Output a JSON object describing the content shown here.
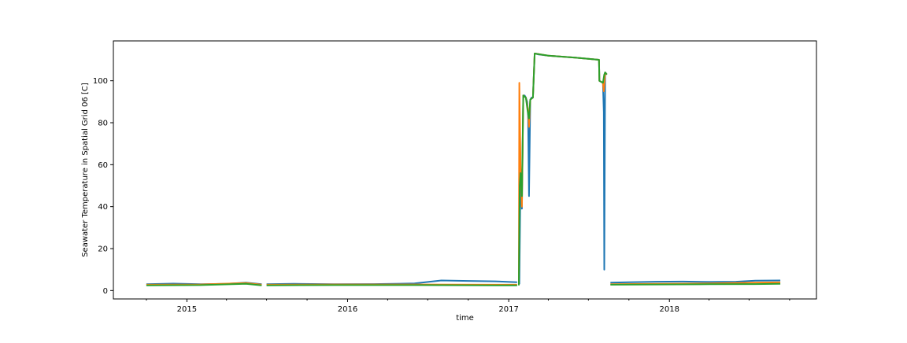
{
  "chart_data": {
    "type": "line",
    "title": "",
    "xlabel": "time",
    "ylabel": "Seawater Temperature in Spatial Grid 06 [C]",
    "xlim": [
      "2014-07-18",
      "2018-12-01"
    ],
    "ylim": [
      -4,
      119
    ],
    "grid": false,
    "legend": "none",
    "x_ticks": [
      {
        "label": "2015",
        "date": "2015-01-01"
      },
      {
        "label": "2016",
        "date": "2016-01-01"
      },
      {
        "label": "2017",
        "date": "2017-01-01"
      },
      {
        "label": "2018",
        "date": "2018-01-01"
      }
    ],
    "y_ticks": [
      0,
      20,
      40,
      60,
      80,
      100
    ],
    "series": [
      {
        "color": "#1f77b4",
        "segments": [
          {
            "x": [
              "2014-10-01",
              "2014-12-01",
              "2015-02-01",
              "2015-04-01",
              "2015-05-15",
              "2015-06-20"
            ],
            "y": [
              3.0,
              3.3,
              3.0,
              3.2,
              3.8,
              3.0
            ]
          },
          {
            "x": [
              "2015-07-01",
              "2015-09-01",
              "2015-12-01",
              "2016-03-01",
              "2016-06-01",
              "2016-08-01",
              "2016-10-01",
              "2016-12-01",
              "2017-01-20"
            ],
            "y": [
              3.0,
              3.2,
              3.0,
              3.1,
              3.4,
              4.8,
              4.6,
              4.4,
              4.0
            ]
          },
          {
            "x": [
              "2017-01-25",
              "2017-01-28",
              "2017-01-31",
              "2017-02-03",
              "2017-02-06",
              "2017-02-09",
              "2017-02-12",
              "2017-02-14",
              "2017-02-16",
              "2017-02-19",
              "2017-02-22",
              "2017-02-25",
              "2017-03-01",
              "2017-03-10",
              "2017-04-01",
              "2017-05-01",
              "2017-06-01",
              "2017-07-01",
              "2017-07-25",
              "2017-07-26",
              "2017-08-03",
              "2017-08-05",
              "2017-08-06",
              "2017-08-08",
              "2017-08-12"
            ],
            "y": [
              3.0,
              58.0,
              39.0,
              92.0,
              93.0,
              92.0,
              90.0,
              85.0,
              45.0,
              91.0,
              92.0,
              92.0,
              113.0,
              112.5,
              112.0,
              111.5,
              111.0,
              110.5,
              110.0,
              100.0,
              99.0,
              85.0,
              10.0,
              104.0,
              103.0
            ]
          },
          {
            "x": [
              "2017-08-20",
              "2017-10-01",
              "2017-12-01",
              "2018-02-01",
              "2018-04-01",
              "2018-06-01",
              "2018-07-15",
              "2018-09-10"
            ],
            "y": [
              3.8,
              4.0,
              4.2,
              4.3,
              4.1,
              4.2,
              4.7,
              4.8
            ]
          }
        ]
      },
      {
        "color": "#ff7f0e",
        "segments": [
          {
            "x": [
              "2014-10-01",
              "2015-02-01",
              "2015-05-15",
              "2015-06-20"
            ],
            "y": [
              2.8,
              2.9,
              3.6,
              2.8
            ]
          },
          {
            "x": [
              "2015-07-01",
              "2015-12-01",
              "2016-06-01",
              "2016-12-01",
              "2017-01-20"
            ],
            "y": [
              2.8,
              2.9,
              2.9,
              2.8,
              2.8
            ]
          },
          {
            "x": [
              "2017-01-24",
              "2017-01-25",
              "2017-01-28",
              "2017-01-31",
              "2017-02-03",
              "2017-02-09",
              "2017-02-14",
              "2017-02-16",
              "2017-02-19",
              "2017-02-25",
              "2017-03-01",
              "2017-04-01",
              "2017-06-01",
              "2017-07-25",
              "2017-07-26",
              "2017-08-03",
              "2017-08-05",
              "2017-08-08",
              "2017-08-12"
            ],
            "y": [
              2.8,
              99.0,
              60.0,
              40.0,
              93.0,
              92.0,
              86.0,
              78.0,
              91.0,
              92.0,
              113.0,
              112.0,
              111.0,
              110.0,
              100.0,
              99.0,
              95.0,
              104.0,
              103.0
            ]
          },
          {
            "x": [
              "2017-08-20",
              "2017-12-01",
              "2018-04-01",
              "2018-07-15",
              "2018-09-10"
            ],
            "y": [
              3.0,
              3.2,
              3.4,
              3.8,
              3.9
            ]
          }
        ]
      },
      {
        "color": "#2ca02c",
        "segments": [
          {
            "x": [
              "2014-10-01",
              "2015-02-01",
              "2015-05-15",
              "2015-06-20"
            ],
            "y": [
              2.5,
              2.6,
              3.2,
              2.5
            ]
          },
          {
            "x": [
              "2015-07-01",
              "2015-12-01",
              "2016-06-01",
              "2016-12-01",
              "2017-01-20"
            ],
            "y": [
              2.5,
              2.6,
              2.6,
              2.5,
              2.5
            ]
          },
          {
            "x": [
              "2017-01-24",
              "2017-01-26",
              "2017-01-28",
              "2017-01-31",
              "2017-02-03",
              "2017-02-09",
              "2017-02-14",
              "2017-02-16",
              "2017-02-19",
              "2017-02-25",
              "2017-03-01",
              "2017-04-01",
              "2017-06-01",
              "2017-07-25",
              "2017-07-26",
              "2017-08-03",
              "2017-08-06",
              "2017-08-08",
              "2017-08-12"
            ],
            "y": [
              2.5,
              50.0,
              56.0,
              45.0,
              93.0,
              92.0,
              84.0,
              82.0,
              91.0,
              92.0,
              113.0,
              112.0,
              111.0,
              110.0,
              100.0,
              99.0,
              103.0,
              104.0,
              103.0
            ]
          },
          {
            "x": [
              "2017-08-20",
              "2017-12-01",
              "2018-04-01",
              "2018-07-15",
              "2018-09-10"
            ],
            "y": [
              2.8,
              2.9,
              3.0,
              3.1,
              3.2
            ]
          }
        ]
      }
    ]
  }
}
